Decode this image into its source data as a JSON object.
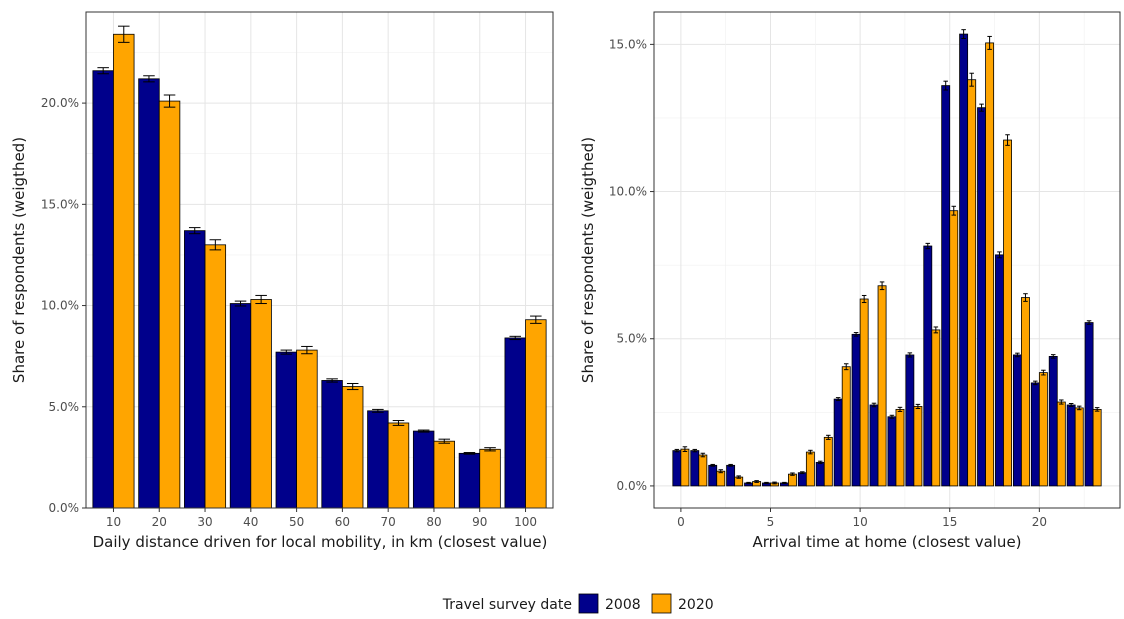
{
  "chart_data": [
    {
      "type": "bar",
      "xlabel": "Daily distance driven for local mobility, in km (closest value)",
      "ylabel": "Share of respondents (weigthed)",
      "categories": [
        "10",
        "20",
        "30",
        "40",
        "50",
        "60",
        "70",
        "80",
        "90",
        "100"
      ],
      "ylim": [
        0,
        0.245
      ],
      "yticks": [
        0,
        0.05,
        0.1,
        0.15,
        0.2
      ],
      "ytick_labels": [
        "0.0%",
        "5.0%",
        "10.0%",
        "15.0%",
        "20.0%"
      ],
      "grid": true,
      "error_bars": true,
      "series": [
        {
          "name": "2008",
          "values": [
            0.216,
            0.212,
            0.137,
            0.101,
            0.077,
            0.063,
            0.048,
            0.038,
            0.027,
            0.084
          ],
          "errors": [
            0.0015,
            0.0015,
            0.0015,
            0.0012,
            0.001,
            0.0008,
            0.0007,
            0.0005,
            0.0004,
            0.0008
          ]
        },
        {
          "name": "2020",
          "values": [
            0.234,
            0.201,
            0.13,
            0.103,
            0.078,
            0.06,
            0.042,
            0.033,
            0.029,
            0.093
          ],
          "errors": [
            0.004,
            0.003,
            0.0025,
            0.002,
            0.0018,
            0.0015,
            0.0012,
            0.001,
            0.0008,
            0.0018
          ]
        }
      ]
    },
    {
      "type": "bar",
      "xlabel": "Arrival time at home (closest value)",
      "ylabel": "Share of respondents (weigthed)",
      "x": [
        0,
        1,
        2,
        3,
        4,
        5,
        6,
        7,
        8,
        9,
        10,
        11,
        12,
        13,
        14,
        15,
        16,
        17,
        18,
        19,
        20,
        21,
        22,
        23
      ],
      "xlim": [
        -1.5,
        24.5
      ],
      "xticks": [
        0,
        5,
        10,
        15,
        20
      ],
      "ylim": [
        -0.0075,
        0.161
      ],
      "yticks": [
        0,
        0.05,
        0.1,
        0.15
      ],
      "ytick_labels": [
        "0.0%",
        "5.0%",
        "10.0%",
        "15.0%"
      ],
      "grid": true,
      "error_bars": true,
      "series": [
        {
          "name": "2008",
          "values": [
            0.012,
            0.012,
            0.007,
            0.007,
            0.001,
            0.001,
            0.001,
            0.0045,
            0.008,
            0.0295,
            0.0515,
            0.0275,
            0.0235,
            0.0445,
            0.0815,
            0.136,
            0.1535,
            0.1285,
            0.0785,
            0.0445,
            0.035,
            0.044,
            0.0275,
            0.0555
          ],
          "errors": [
            0.0004,
            0.0004,
            0.0003,
            0.0003,
            0.0002,
            0.0002,
            0.0002,
            0.0003,
            0.0004,
            0.0005,
            0.0006,
            0.0006,
            0.0005,
            0.0007,
            0.0009,
            0.0015,
            0.0015,
            0.0012,
            0.001,
            0.0006,
            0.0006,
            0.0006,
            0.0005,
            0.0006
          ]
        },
        {
          "name": "2020",
          "values": [
            0.0125,
            0.0105,
            0.005,
            0.003,
            0.0015,
            0.001,
            0.004,
            0.0115,
            0.0165,
            0.0405,
            0.0635,
            0.068,
            0.026,
            0.027,
            0.053,
            0.0935,
            0.138,
            0.1505,
            0.1175,
            0.064,
            0.0385,
            0.0285,
            0.0265,
            0.026
          ],
          "errors": [
            0.0008,
            0.0006,
            0.0005,
            0.0004,
            0.0003,
            0.0003,
            0.0004,
            0.0006,
            0.0007,
            0.001,
            0.0012,
            0.0013,
            0.0007,
            0.0007,
            0.001,
            0.0015,
            0.0022,
            0.0022,
            0.0018,
            0.0013,
            0.0008,
            0.0007,
            0.0006,
            0.0006
          ]
        }
      ]
    }
  ],
  "legend": {
    "title": "Travel survey date",
    "items": [
      {
        "label": "2008",
        "color": "#00008b"
      },
      {
        "label": "2020",
        "color": "#ffa500"
      }
    ],
    "placement": "bottom"
  }
}
